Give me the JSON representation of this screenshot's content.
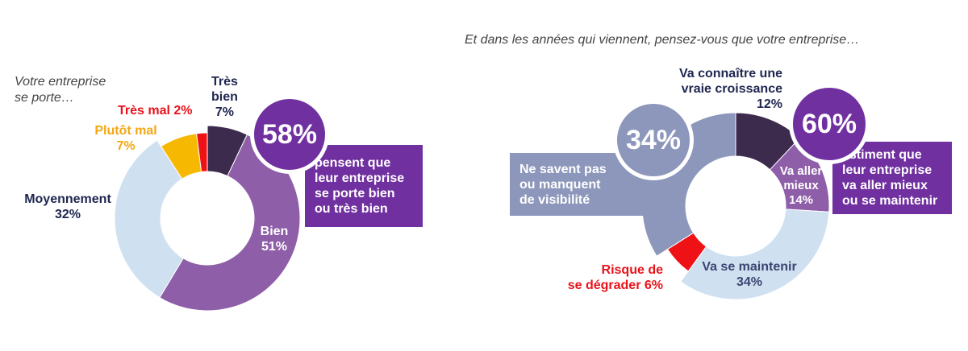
{
  "chart_data": [
    {
      "type": "pie",
      "question": "Votre entreprise\nse porte…",
      "slices": [
        {
          "label": "Très bien",
          "value": 7,
          "color": "#3d2b4e"
        },
        {
          "label": "Bien",
          "value": 51,
          "color": "#8e5ea8"
        },
        {
          "label": "Moyennement",
          "value": 32,
          "color": "#cfe0f1"
        },
        {
          "label": "Plutôt mal",
          "value": 7,
          "color": "#f6b800"
        },
        {
          "label": "Très mal",
          "value": 2,
          "color": "#ee1116"
        }
      ],
      "label_texts": {
        "tres_bien": "Très\nbien\n7%",
        "bien": "Bien\n51%",
        "moyennement": "Moyennement\n32%",
        "plutot_mal": "Plutôt mal\n7%",
        "tres_mal": "Très mal 2%"
      },
      "highlight": {
        "value": "58%",
        "text": "pensent que\nleur entreprise\nse porte bien\nou très bien"
      }
    },
    {
      "type": "pie",
      "question": "Et dans les années qui viennent, pensez-vous que votre entreprise…",
      "slices": [
        {
          "label": "Va connaître une vraie croissance",
          "value": 12,
          "color": "#3d2b4e"
        },
        {
          "label": "Va aller mieux",
          "value": 14,
          "color": "#8e5ea8"
        },
        {
          "label": "Va se maintenir",
          "value": 34,
          "color": "#cfe0f1"
        },
        {
          "label": "Risque de se dégrader",
          "value": 6,
          "color": "#ee1116"
        },
        {
          "label": "Ne savent pas ou manquent de visibilité",
          "value": 34,
          "color": "#8c97bb"
        }
      ],
      "label_texts": {
        "croissance": "Va connaître une\nvraie croissance\n12%",
        "mieux": "Va aller\nmieux\n14%",
        "maintenir": "Va se maintenir\n34%",
        "degrader": "Risque de\nse dégrader 6%"
      },
      "highlight": {
        "value": "60%",
        "text": "estiment que\nleur entreprise\nva aller mieux\nou se maintenir"
      },
      "secondary": {
        "value": "34%",
        "text": "Ne savent pas\nou manquent\nde visibilité"
      }
    }
  ]
}
